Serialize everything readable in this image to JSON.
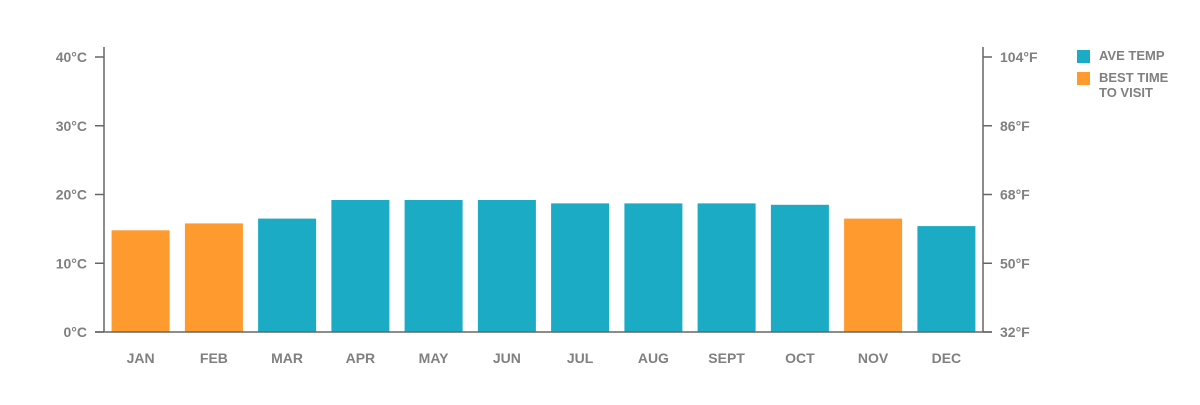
{
  "chart_data": {
    "type": "bar",
    "categories": [
      "JAN",
      "FEB",
      "MAR",
      "APR",
      "MAY",
      "JUN",
      "JUL",
      "AUG",
      "SEPT",
      "OCT",
      "NOV",
      "DEC"
    ],
    "values": [
      14.8,
      15.8,
      16.5,
      19.2,
      19.2,
      19.2,
      18.7,
      18.7,
      18.7,
      18.5,
      16.5,
      15.4
    ],
    "highlight": [
      true,
      true,
      false,
      false,
      false,
      false,
      false,
      false,
      false,
      false,
      true,
      false
    ],
    "title": "",
    "xlabel": "",
    "ylabel": "",
    "ylim": [
      0,
      40
    ],
    "y_ticks": [
      "0°C",
      "10°C",
      "20°C",
      "30°C",
      "40°C"
    ],
    "y2_ticks": [
      "32°F",
      "50°F",
      "68°F",
      "86°F",
      "104°F"
    ],
    "grid": false,
    "legend_position": "right",
    "colors": {
      "normal": "#1BABC5",
      "highlight": "#FF9A2E",
      "axis": "#666666",
      "text": "#808080"
    },
    "legend": [
      {
        "label": "AVE TEMP",
        "color": "#1BABC5"
      },
      {
        "label": "BEST TIME\nTO VISIT",
        "color": "#FF9A2E"
      }
    ]
  }
}
